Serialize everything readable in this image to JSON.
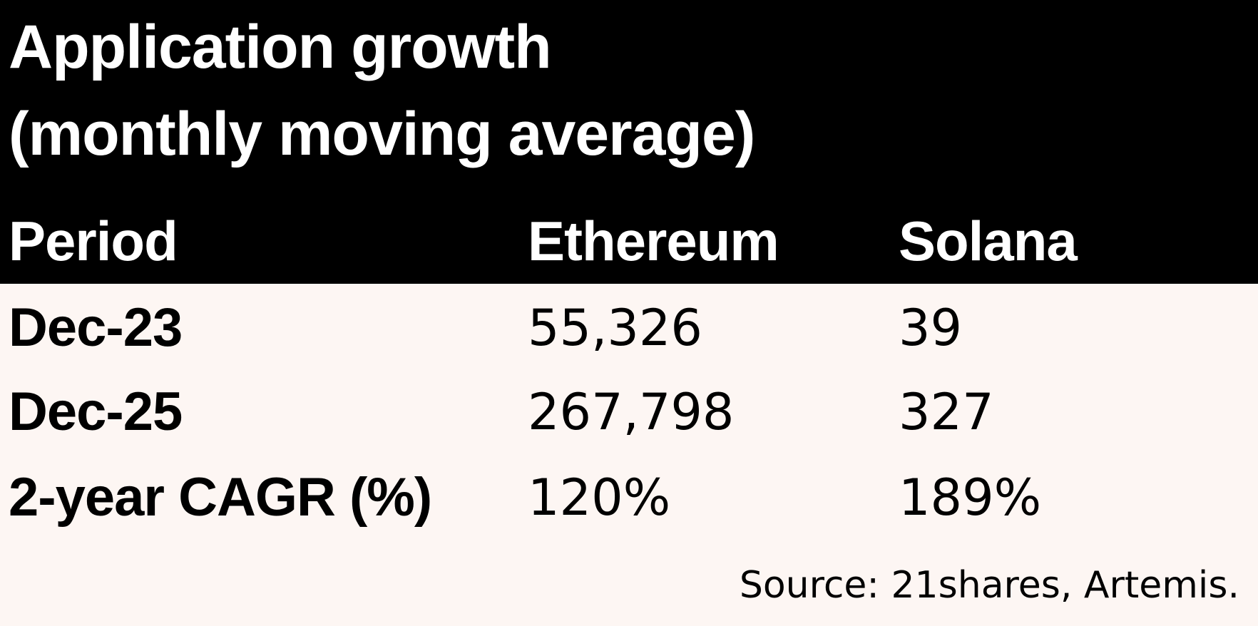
{
  "chart_data": {
    "type": "table",
    "title": "Application growth (monthly moving average)",
    "title_lines": [
      "Application growth",
      "(monthly moving average)"
    ],
    "columns": [
      "Period",
      "Ethereum",
      "Solana"
    ],
    "rows": [
      {
        "period": "Dec-23",
        "ethereum": "55,326",
        "solana": "39"
      },
      {
        "period": "Dec-25",
        "ethereum": "267,798",
        "solana": "327"
      },
      {
        "period": "2-year CAGR (%)",
        "ethereum": "120%",
        "solana": "189%"
      }
    ],
    "source": "Source: 21shares, Artemis."
  },
  "colors": {
    "header_background": "#000000",
    "header_text": "#ffffff",
    "body_background": "#fdf6f3",
    "body_text": "#000000"
  }
}
